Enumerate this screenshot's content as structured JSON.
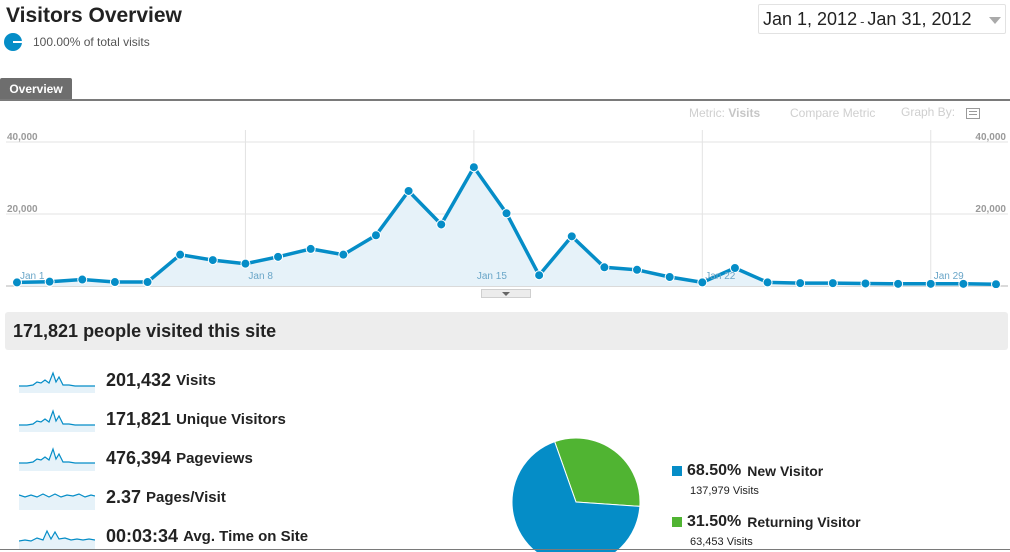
{
  "header": {
    "title": "Visitors Overview",
    "segment_label": "100.00% of total visits",
    "date_range": {
      "start": "Jan 1, 2012",
      "separator": "-",
      "end": "Jan 31, 2012"
    }
  },
  "tabs": [
    {
      "label": "Overview",
      "active": true
    }
  ],
  "chart_controls": {
    "metric_prefix": "Metric:",
    "metric_value": "Visits",
    "compare_label": "Compare Metric",
    "graph_by_label": "Graph By:"
  },
  "chart_data": {
    "type": "area",
    "title": "",
    "xlabel": "",
    "ylabel": "",
    "x": [
      "Jan 1",
      "Jan 2",
      "Jan 3",
      "Jan 4",
      "Jan 5",
      "Jan 6",
      "Jan 7",
      "Jan 8",
      "Jan 9",
      "Jan 10",
      "Jan 11",
      "Jan 12",
      "Jan 13",
      "Jan 14",
      "Jan 15",
      "Jan 16",
      "Jan 17",
      "Jan 18",
      "Jan 19",
      "Jan 20",
      "Jan 21",
      "Jan 22",
      "Jan 23",
      "Jan 24",
      "Jan 25",
      "Jan 26",
      "Jan 27",
      "Jan 28",
      "Jan 29",
      "Jan 30",
      "Jan 31"
    ],
    "x_tick_labels": [
      "Jan 1",
      "Jan 8",
      "Jan 15",
      "Jan 22",
      "Jan 29"
    ],
    "series": [
      {
        "values": [
          1000,
          1200,
          1800,
          1100,
          1100,
          8700,
          7200,
          6200,
          8100,
          10300,
          8700,
          14100,
          26400,
          17100,
          33000,
          20200,
          3000,
          13800,
          5200,
          4500,
          2500,
          1000,
          5000,
          1000,
          800,
          800,
          700,
          600,
          600,
          600,
          500
        ]
      }
    ],
    "ylim": [
      0,
      40000
    ],
    "y_ticks": [
      "20,000",
      "40,000"
    ],
    "grid": true,
    "color": "#058dc7",
    "fill_color": "#e6f2f9"
  },
  "summary": {
    "headline": "171,821 people visited this site",
    "metrics": [
      {
        "value": "201,432",
        "label": "Visits"
      },
      {
        "value": "171,821",
        "label": "Unique Visitors"
      },
      {
        "value": "476,394",
        "label": "Pageviews"
      },
      {
        "value": "2.37",
        "label": "Pages/Visit"
      },
      {
        "value": "00:03:34",
        "label": "Avg. Time on Site"
      }
    ]
  },
  "visitor_pie": {
    "type": "pie",
    "slices": [
      {
        "percent": "68.50%",
        "label": "New Visitor",
        "visits": "137,979 Visits",
        "value": 68.5,
        "color": "#058dc7"
      },
      {
        "percent": "31.50%",
        "label": "Returning Visitor",
        "visits": "63,453 Visits",
        "value": 31.5,
        "color": "#50b432"
      }
    ]
  }
}
